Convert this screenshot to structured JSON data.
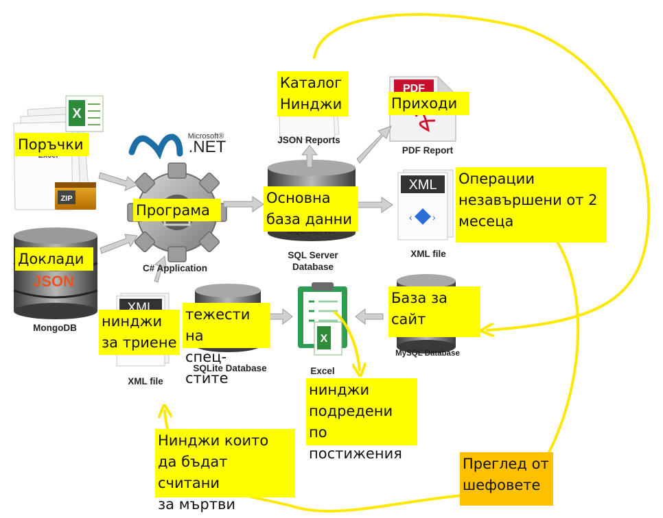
{
  "notes": {
    "orders": "Поръчки",
    "program": "Програма",
    "reports": "Доклади",
    "ninja_catalog": "Каталог\nНинджи",
    "income": "Приходи",
    "main_db": "Основна\nбаза данни",
    "operations": "Операции\nнезавършени от 2\nмесеца",
    "site_db": "База за\nсайт",
    "ninjas_delete": "нинджи\nза триене",
    "specialist_weights": "тежести на\nспец-стите",
    "ninjas_sorted": "нинджи\nподредени по\nпостижения",
    "ninjas_dead": "Нинджи които\nда бъдат считани\nза мъртви",
    "boss_review": "Преглед от\nшефовете"
  },
  "captions": {
    "csharp_app": "C# Application",
    "mongodb": "MongoDB",
    "json_reports": "JSON Reports",
    "pdf_report": "PDF Report",
    "sql_server_db": "SQL Server\nDatabase",
    "xml_file_right": "XML file",
    "xml_file_left": "XML file",
    "sqlite_db": "SQLite Database",
    "excel": "Excel",
    "mysql_db": "MySQL Database"
  },
  "icon_text": {
    "microsoft": "Microsoft®",
    "net": ".NET",
    "pdf": "PDF",
    "xml": "XML",
    "zip": "ZIP",
    "json": "JSON",
    "sql_server_partial": "SQL Server",
    "excel_partial": "Excel"
  },
  "colors": {
    "note_yellow": "#ffff00",
    "note_orange": "#ffc000",
    "loop_arrow": "#ffe800",
    "gray_arrow": "#cfcfcf"
  }
}
